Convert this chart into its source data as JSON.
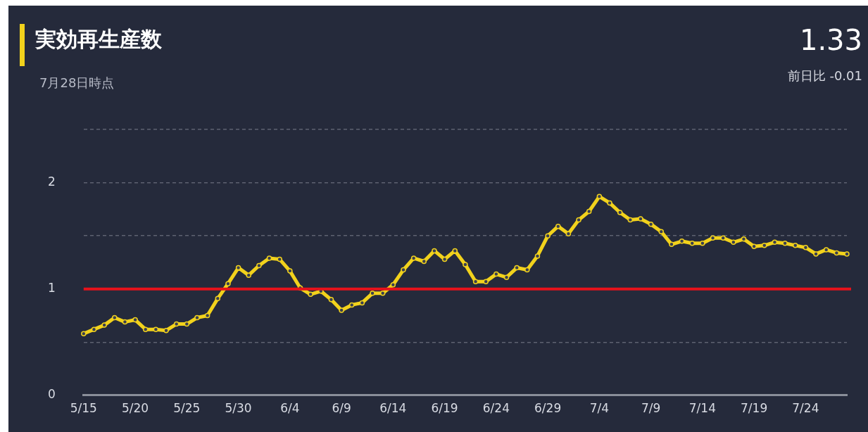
{
  "chart_data": {
    "type": "line",
    "title": "実効再生産数",
    "subtitle": "7月28日時点",
    "annotations": [
      "1.33",
      "前日比 -0.01"
    ],
    "categories": [
      "5/15",
      null,
      null,
      null,
      null,
      "5/20",
      null,
      null,
      null,
      null,
      "5/25",
      null,
      null,
      null,
      null,
      "5/30",
      null,
      null,
      null,
      null,
      "6/4",
      null,
      null,
      null,
      null,
      "6/9",
      null,
      null,
      null,
      null,
      "6/14",
      null,
      null,
      null,
      null,
      "6/19",
      null,
      null,
      null,
      null,
      "6/24",
      null,
      null,
      null,
      null,
      "6/29",
      null,
      null,
      null,
      null,
      "7/4",
      null,
      null,
      null,
      null,
      "7/9",
      null,
      null,
      null,
      null,
      "7/14",
      null,
      null,
      null,
      null,
      "7/19",
      null,
      null,
      null,
      null,
      "7/24",
      null,
      null,
      null,
      null
    ],
    "series": [
      {
        "color": "#f2d21c",
        "values": [
          0.58,
          0.62,
          0.66,
          0.73,
          0.69,
          0.71,
          0.62,
          0.62,
          0.61,
          0.67,
          0.67,
          0.73,
          0.75,
          0.91,
          1.05,
          1.2,
          1.13,
          1.22,
          1.29,
          1.28,
          1.17,
          1.01,
          0.95,
          0.98,
          0.9,
          0.8,
          0.85,
          0.87,
          0.96,
          0.96,
          1.04,
          1.18,
          1.29,
          1.26,
          1.36,
          1.28,
          1.36,
          1.23,
          1.07,
          1.07,
          1.14,
          1.11,
          1.2,
          1.18,
          1.31,
          1.5,
          1.59,
          1.52,
          1.65,
          1.73,
          1.87,
          1.81,
          1.72,
          1.65,
          1.66,
          1.61,
          1.54,
          1.42,
          1.45,
          1.43,
          1.43,
          1.48,
          1.48,
          1.44,
          1.47,
          1.4,
          1.41,
          1.44,
          1.43,
          1.41,
          1.39,
          1.33,
          1.37,
          1.34,
          1.33
        ]
      }
    ],
    "ylim": [
      0,
      2.5
    ],
    "yticks": [
      0,
      {
        "value": 0.5,
        "label": null
      },
      1,
      {
        "value": 1.5,
        "label": null
      },
      2,
      {
        "value": 2.5,
        "label": null
      }
    ],
    "grid": "y",
    "marker": "circle",
    "line_style": "solid",
    "legend": false,
    "ref_lines": [
      {
        "axis": "y",
        "value": 1,
        "label": null,
        "color": "#e8121b",
        "line_style": "solid"
      }
    ]
  }
}
